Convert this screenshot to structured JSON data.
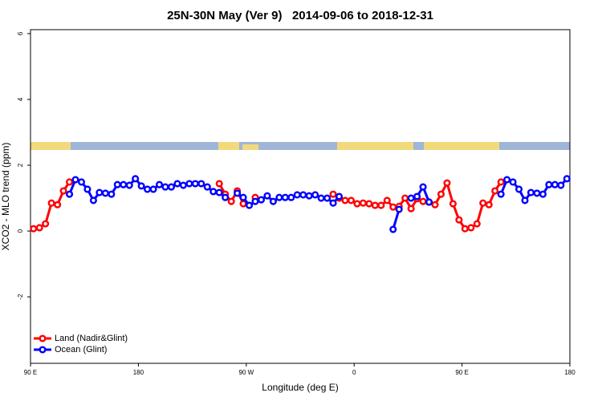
{
  "chart_data": {
    "type": "line",
    "title": "25N-30N May (Ver 9)   2014-09-06 to 2018-12-31",
    "x_label": "Longitude (deg E)",
    "y_label": "XCO2 - MLO trend (ppm)",
    "xlim": [
      90,
      540
    ],
    "ylim": [
      -4.02,
      6.12
    ],
    "xticks": [
      {
        "value": 90,
        "label": "90 E"
      },
      180,
      {
        "value": 270,
        "label": "90 W"
      },
      {
        "value": 360,
        "label": "0"
      },
      {
        "value": 450,
        "label": "90 E"
      },
      {
        "value": 540,
        "label": "180"
      }
    ],
    "yticks": [
      -2,
      0,
      2,
      4,
      6
    ],
    "legend": "bottom-left",
    "x": [
      92.5,
      97.5,
      102.5,
      107.5,
      112.5,
      117.5,
      122.5,
      127.5,
      132.5,
      137.5,
      142.5,
      147.5,
      152.5,
      157.5,
      162.5,
      167.5,
      172.5,
      177.5,
      182.5,
      187.5,
      192.5,
      197.5,
      202.5,
      207.5,
      212.5,
      217.5,
      222.5,
      227.5,
      232.5,
      237.5,
      242.5,
      247.5,
      252.5,
      257.5,
      262.5,
      267.5,
      272.5,
      277.5,
      282.5,
      287.5,
      292.5,
      297.5,
      302.5,
      307.5,
      312.5,
      317.5,
      322.5,
      327.5,
      332.5,
      337.5,
      342.5,
      347.5,
      352.5,
      357.5,
      362.5,
      367.5,
      372.5,
      377.5,
      382.5,
      387.5,
      392.5,
      397.5,
      402.5,
      407.5,
      412.5,
      417.5,
      422.5,
      427.5,
      432.5,
      437.5,
      442.5,
      447.5,
      452.5,
      457.5,
      462.5,
      467.5,
      472.5,
      477.5,
      482.5,
      487.5,
      492.5,
      497.5,
      502.5,
      507.5,
      512.5,
      517.5,
      522.5,
      527.5,
      532.5,
      537.5
    ],
    "series": [
      {
        "name": "Land (Nadir&Glint)",
        "color": "#ff0000",
        "values": [
          0.07,
          0.1,
          0.22,
          0.85,
          0.8,
          1.22,
          1.49,
          null,
          null,
          null,
          null,
          null,
          null,
          null,
          null,
          null,
          null,
          null,
          null,
          null,
          null,
          null,
          null,
          null,
          null,
          null,
          null,
          null,
          null,
          null,
          null,
          1.44,
          1.12,
          0.9,
          1.22,
          0.83,
          null,
          1.02,
          null,
          null,
          null,
          null,
          null,
          null,
          null,
          null,
          null,
          null,
          null,
          null,
          1.12,
          1.0,
          0.93,
          0.93,
          0.83,
          0.85,
          0.83,
          0.78,
          0.78,
          0.93,
          0.73,
          0.75,
          1.0,
          0.68,
          0.98,
          0.9,
          0.88,
          0.8,
          1.12,
          1.46,
          0.83,
          0.34,
          0.07,
          0.1,
          0.22,
          0.85,
          0.8,
          1.22,
          1.49,
          null,
          null,
          null,
          null,
          null,
          null,
          null,
          null,
          null,
          null,
          null
        ]
      },
      {
        "name": "Ocean (Glint)",
        "color": "#0000ff",
        "values": [
          null,
          null,
          null,
          null,
          null,
          null,
          1.12,
          1.56,
          1.49,
          1.27,
          0.93,
          1.17,
          1.15,
          1.12,
          1.41,
          1.41,
          1.39,
          1.59,
          1.37,
          1.27,
          1.27,
          1.41,
          1.34,
          1.34,
          1.44,
          1.39,
          1.44,
          1.44,
          1.44,
          1.34,
          1.2,
          1.17,
          1.02,
          null,
          1.15,
          1.02,
          0.78,
          0.9,
          0.95,
          1.07,
          0.9,
          1.02,
          1.02,
          1.02,
          1.1,
          1.1,
          1.07,
          1.1,
          1.0,
          1.0,
          0.85,
          1.05,
          null,
          null,
          null,
          null,
          null,
          null,
          null,
          null,
          0.05,
          0.66,
          null,
          1.0,
          1.05,
          1.34,
          0.88,
          null,
          null,
          null,
          null,
          null,
          null,
          null,
          null,
          null,
          null,
          null,
          1.12,
          1.56,
          1.49,
          1.27,
          0.93,
          1.17,
          1.15,
          1.12,
          1.41,
          1.41,
          1.39,
          1.59
        ]
      }
    ]
  }
}
